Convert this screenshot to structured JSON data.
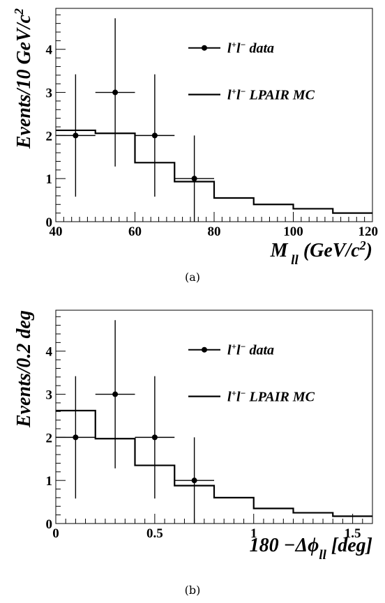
{
  "chart_data": [
    {
      "type": "histogram",
      "caption": "(a)",
      "xlabel": "M_ll (GeV/c^2)",
      "ylabel": "Events/10 GeV/c^2",
      "xlim": [
        40,
        120
      ],
      "ylim": [
        0,
        4.95
      ],
      "x_ticks": [
        "40",
        "60",
        "80",
        "100",
        "120"
      ],
      "y_ticks": [
        "0",
        "1",
        "2",
        "3",
        "4"
      ],
      "legend": {
        "position": "top-right",
        "entries": [
          "l+l- data",
          "l+l- LPAIR MC"
        ]
      },
      "series": [
        {
          "name": "l+l- data",
          "kind": "points-with-errors",
          "points": [
            {
              "x": 45,
              "y": 2,
              "xerr": 5,
              "yerr_low": 1.42,
              "yerr_high": 1.42
            },
            {
              "x": 55,
              "y": 3,
              "xerr": 5,
              "yerr_low": 1.72,
              "yerr_high": 1.72
            },
            {
              "x": 65,
              "y": 2,
              "xerr": 5,
              "yerr_low": 1.42,
              "yerr_high": 1.42
            },
            {
              "x": 75,
              "y": 1,
              "xerr": 5,
              "yerr_low": 1.0,
              "yerr_high": 1.0
            }
          ]
        },
        {
          "name": "l+l- LPAIR MC",
          "kind": "step",
          "bin_edges": [
            40,
            50,
            60,
            70,
            80,
            90,
            100,
            110,
            120
          ],
          "values": [
            2.12,
            2.05,
            1.37,
            0.93,
            0.55,
            0.4,
            0.3,
            0.2
          ]
        }
      ]
    },
    {
      "type": "histogram",
      "caption": "(b)",
      "xlabel": "180 -Δφ_ll [deg]",
      "ylabel": "Events/0.2 deg",
      "xlim": [
        0,
        1.6
      ],
      "ylim": [
        0,
        4.95
      ],
      "x_ticks": [
        "0",
        "0.5",
        "1",
        "1.5"
      ],
      "y_ticks": [
        "0",
        "1",
        "2",
        "3",
        "4"
      ],
      "legend": {
        "position": "top-right",
        "entries": [
          "l+l- data",
          "l+l- LPAIR MC"
        ]
      },
      "series": [
        {
          "name": "l+l- data",
          "kind": "points-with-errors",
          "points": [
            {
              "x": 0.1,
              "y": 2,
              "xerr": 0.1,
              "yerr_low": 1.42,
              "yerr_high": 1.42
            },
            {
              "x": 0.3,
              "y": 3,
              "xerr": 0.1,
              "yerr_low": 1.72,
              "yerr_high": 1.72
            },
            {
              "x": 0.5,
              "y": 2,
              "xerr": 0.1,
              "yerr_low": 1.42,
              "yerr_high": 1.42
            },
            {
              "x": 0.7,
              "y": 1,
              "xerr": 0.1,
              "yerr_low": 1.0,
              "yerr_high": 1.0
            }
          ]
        },
        {
          "name": "l+l- LPAIR MC",
          "kind": "step",
          "bin_edges": [
            0,
            0.2,
            0.4,
            0.6,
            0.8,
            1.0,
            1.2,
            1.4,
            1.6
          ],
          "values": [
            2.62,
            1.97,
            1.35,
            0.88,
            0.6,
            0.35,
            0.25,
            0.17
          ]
        }
      ]
    }
  ]
}
